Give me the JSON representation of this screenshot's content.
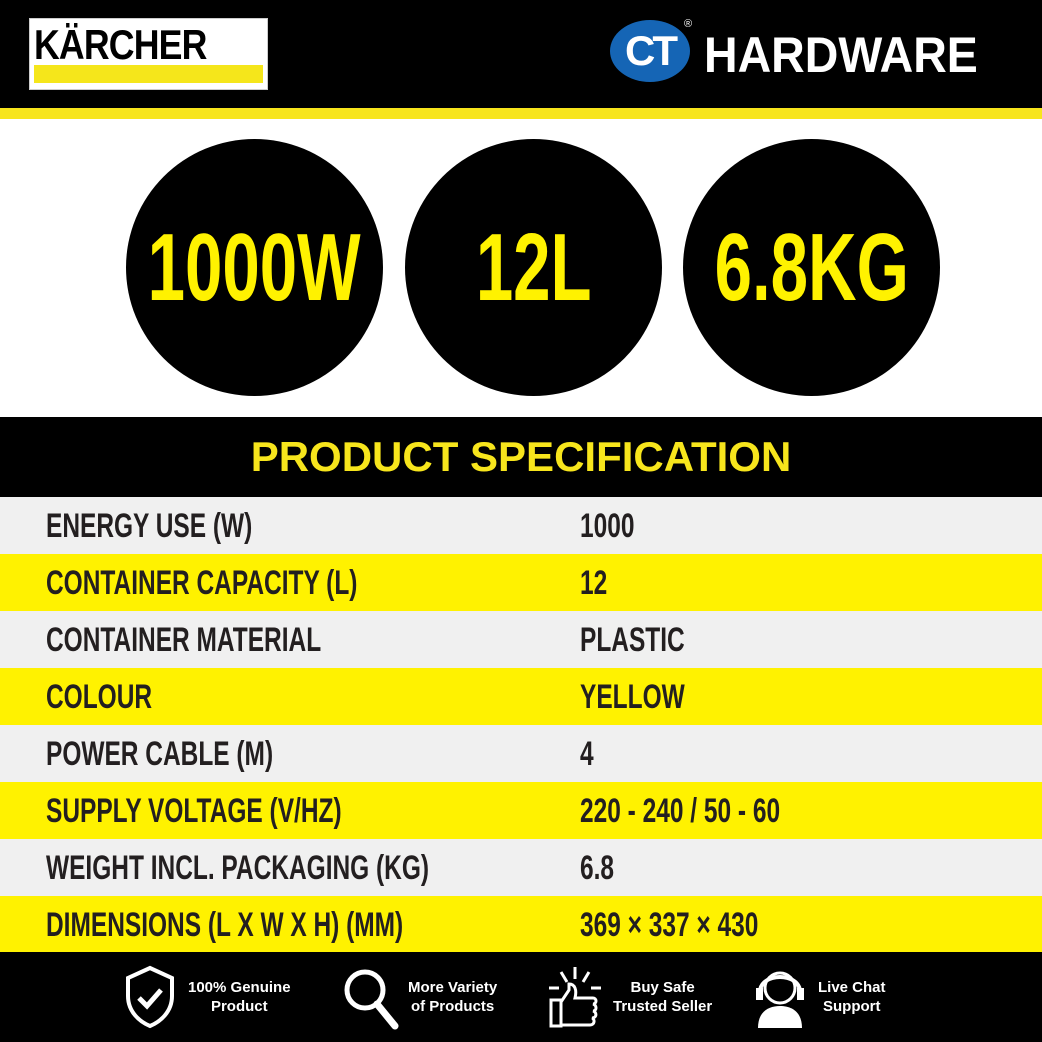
{
  "header": {
    "brand_logo": "KÄRCHER",
    "retailer_logo_mark": "CT",
    "retailer_logo_text": "HARDWARE",
    "registered_mark": "®"
  },
  "highlights": [
    "1000W",
    "12L",
    "6.8KG"
  ],
  "spec": {
    "title": "PRODUCT SPECIFICATION",
    "rows": [
      {
        "label": "ENERGY USE (W)",
        "value": "1000"
      },
      {
        "label": "CONTAINER CAPACITY (L)",
        "value": "12"
      },
      {
        "label": "CONTAINER MATERIAL",
        "value": "PLASTIC"
      },
      {
        "label": "COLOUR",
        "value": "YELLOW"
      },
      {
        "label": "POWER CABLE (M)",
        "value": "4"
      },
      {
        "label": "SUPPLY VOLTAGE (V/HZ)",
        "value": "220 - 240 / 50 - 60"
      },
      {
        "label": "WEIGHT INCL. PACKAGING (KG)",
        "value": "6.8"
      },
      {
        "label": "DIMENSIONS (L X W X H) (MM)",
        "value": "369 × 337 × 430"
      }
    ],
    "row_colors": [
      "#f0f0f0",
      "#fff200"
    ]
  },
  "footer": {
    "features": [
      {
        "icon": "shield-check-icon",
        "line1": "100% Genuine",
        "line2": "Product"
      },
      {
        "icon": "magnifier-icon",
        "line1": "More Variety",
        "line2": "of Products"
      },
      {
        "icon": "thumbs-up-icon",
        "line1": "Buy Safe",
        "line2": "Trusted Seller"
      },
      {
        "icon": "headset-agent-icon",
        "line1": "Live Chat",
        "line2": "Support"
      }
    ]
  },
  "colors": {
    "accent_yellow": "#fff200",
    "black": "#000000",
    "ct_blue": "#1565b5"
  }
}
